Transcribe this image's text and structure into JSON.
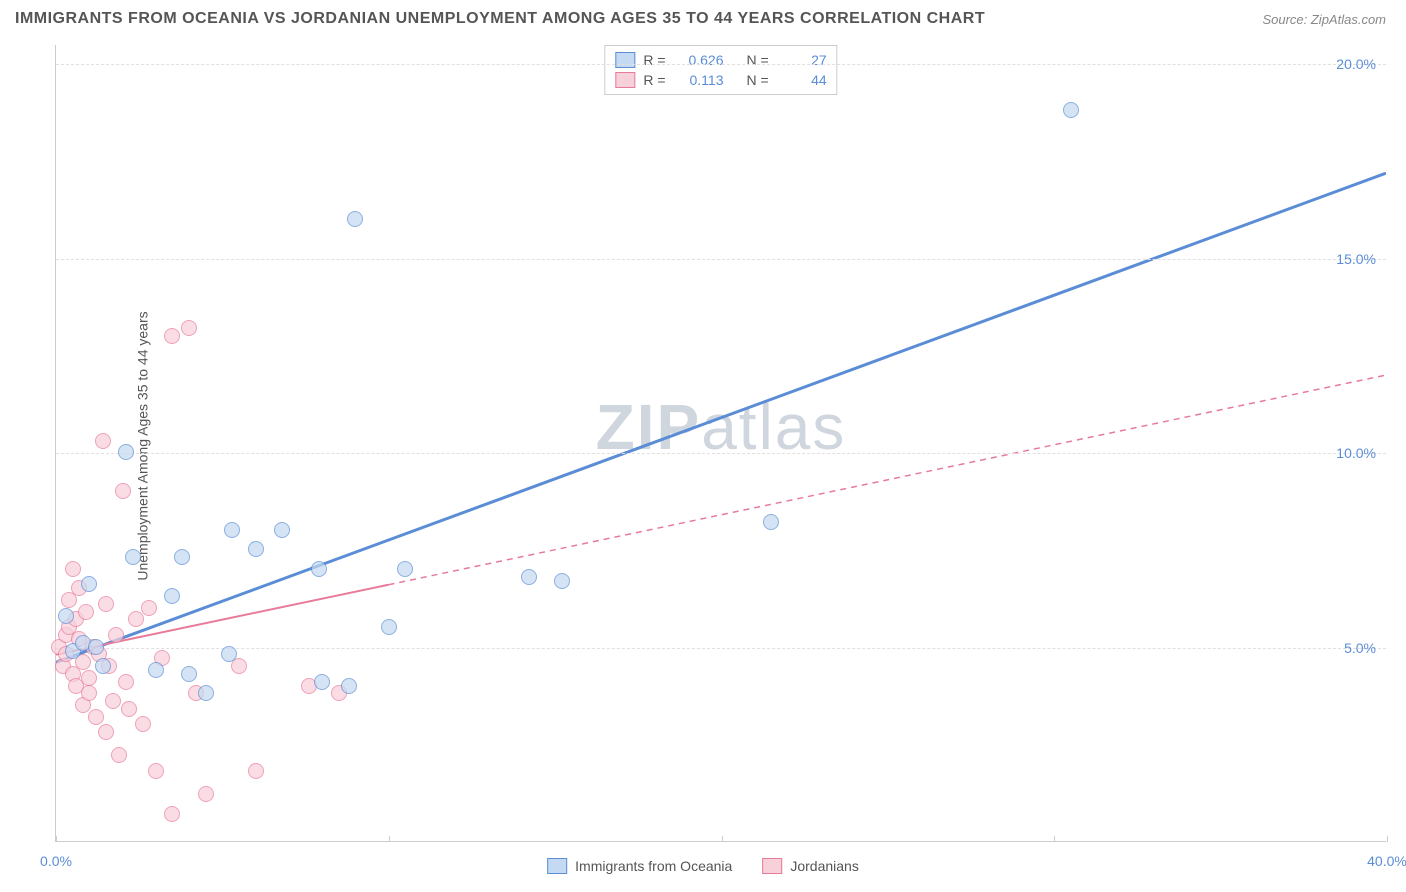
{
  "title": "IMMIGRANTS FROM OCEANIA VS JORDANIAN UNEMPLOYMENT AMONG AGES 35 TO 44 YEARS CORRELATION CHART",
  "source": "Source: ZipAtlas.com",
  "ylabel": "Unemployment Among Ages 35 to 44 years",
  "watermark_a": "ZIP",
  "watermark_b": "atlas",
  "chart": {
    "type": "scatter",
    "xlim": [
      0,
      40
    ],
    "ylim": [
      0,
      20.5
    ],
    "xtick_positions": [
      0,
      10,
      20,
      30,
      40
    ],
    "xtick_labels": [
      "0.0%",
      "",
      "",
      "",
      "40.0%"
    ],
    "ytick_positions": [
      5,
      10,
      15,
      20
    ],
    "ytick_labels": [
      "5.0%",
      "10.0%",
      "15.0%",
      "20.0%"
    ],
    "grid_color": "#e0e0e0",
    "axis_color": "#cccccc",
    "background_color": "#ffffff",
    "point_radius": 8
  },
  "series": [
    {
      "name": "Immigrants from Oceania",
      "fill_color": "#c4daf2",
      "stroke_color": "#5b8dd6",
      "R": "0.626",
      "N": "27",
      "trend_solid": {
        "x1": 0,
        "y1": 4.6,
        "x2": 40,
        "y2": 17.2
      },
      "trend_dash": null,
      "points": [
        [
          0.3,
          5.8
        ],
        [
          0.5,
          4.9
        ],
        [
          0.8,
          5.1
        ],
        [
          1.0,
          6.6
        ],
        [
          1.2,
          5.0
        ],
        [
          1.4,
          4.5
        ],
        [
          2.1,
          10.0
        ],
        [
          2.3,
          7.3
        ],
        [
          3.0,
          4.4
        ],
        [
          3.5,
          6.3
        ],
        [
          4.0,
          4.3
        ],
        [
          3.8,
          7.3
        ],
        [
          4.5,
          3.8
        ],
        [
          5.3,
          8.0
        ],
        [
          5.2,
          4.8
        ],
        [
          6.0,
          7.5
        ],
        [
          6.8,
          8.0
        ],
        [
          7.9,
          7.0
        ],
        [
          8.0,
          4.1
        ],
        [
          8.8,
          4.0
        ],
        [
          9.0,
          16.0
        ],
        [
          10.0,
          5.5
        ],
        [
          10.5,
          7.0
        ],
        [
          14.2,
          6.8
        ],
        [
          15.2,
          6.7
        ],
        [
          21.5,
          8.2
        ],
        [
          30.5,
          18.8
        ]
      ]
    },
    {
      "name": "Jordanians",
      "fill_color": "#f8d0da",
      "stroke_color": "#e87a9a",
      "R": "0.113",
      "N": "44",
      "trend_solid": {
        "x1": 0,
        "y1": 4.8,
        "x2": 10,
        "y2": 6.6
      },
      "trend_dash": {
        "x1": 10,
        "y1": 6.6,
        "x2": 40,
        "y2": 12.0
      },
      "points": [
        [
          0.1,
          5.0
        ],
        [
          0.2,
          4.5
        ],
        [
          0.3,
          5.3
        ],
        [
          0.3,
          4.8
        ],
        [
          0.4,
          6.2
        ],
        [
          0.4,
          5.5
        ],
        [
          0.5,
          7.0
        ],
        [
          0.5,
          4.3
        ],
        [
          0.6,
          5.7
        ],
        [
          0.6,
          4.0
        ],
        [
          0.7,
          5.2
        ],
        [
          0.7,
          6.5
        ],
        [
          0.8,
          4.6
        ],
        [
          0.8,
          3.5
        ],
        [
          0.9,
          5.9
        ],
        [
          1.0,
          4.2
        ],
        [
          1.0,
          3.8
        ],
        [
          1.1,
          5.0
        ],
        [
          1.2,
          3.2
        ],
        [
          1.3,
          4.8
        ],
        [
          1.4,
          10.3
        ],
        [
          1.5,
          2.8
        ],
        [
          1.5,
          6.1
        ],
        [
          1.6,
          4.5
        ],
        [
          1.7,
          3.6
        ],
        [
          1.8,
          5.3
        ],
        [
          1.9,
          2.2
        ],
        [
          2.0,
          9.0
        ],
        [
          2.1,
          4.1
        ],
        [
          2.2,
          3.4
        ],
        [
          2.4,
          5.7
        ],
        [
          2.6,
          3.0
        ],
        [
          2.8,
          6.0
        ],
        [
          3.0,
          1.8
        ],
        [
          3.2,
          4.7
        ],
        [
          3.5,
          0.7
        ],
        [
          3.5,
          13.0
        ],
        [
          4.0,
          13.2
        ],
        [
          4.2,
          3.8
        ],
        [
          4.5,
          1.2
        ],
        [
          5.5,
          4.5
        ],
        [
          6.0,
          1.8
        ],
        [
          7.6,
          4.0
        ],
        [
          8.5,
          3.8
        ]
      ]
    }
  ],
  "legend_top": {
    "R_label": "R =",
    "N_label": "N ="
  },
  "legend_bottom": [
    {
      "label": "Immigrants from Oceania",
      "fill": "#c4daf2",
      "stroke": "#5b8dd6"
    },
    {
      "label": "Jordanians",
      "fill": "#f8d0da",
      "stroke": "#e87a9a"
    }
  ]
}
